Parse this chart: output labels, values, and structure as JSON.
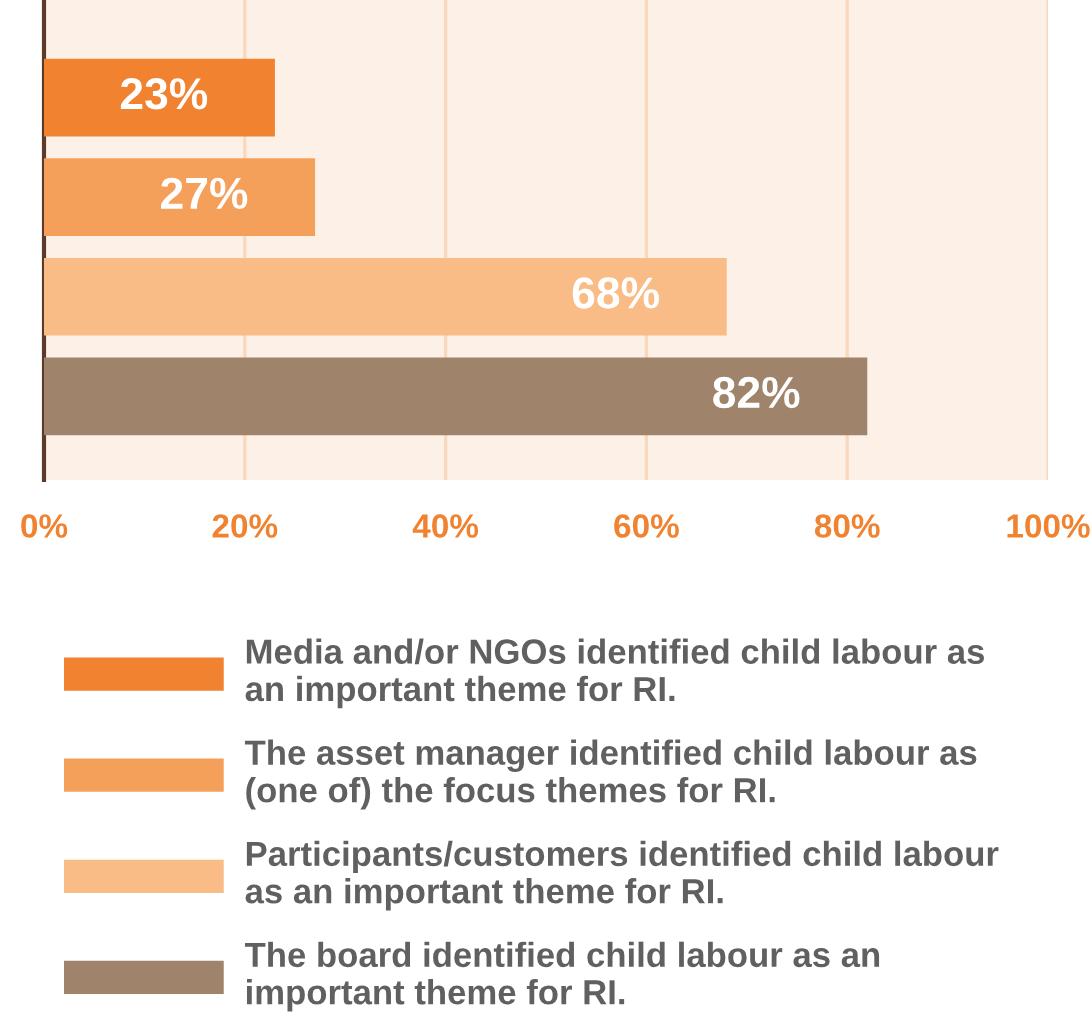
{
  "chart_data": {
    "type": "bar",
    "orientation": "horizontal",
    "categories": [
      null,
      null,
      null,
      null
    ],
    "series": [
      {
        "name": "Media and/or NGOs identified child labour as an important theme for RI.",
        "color": "#f08230",
        "values": [
          23,
          null,
          null,
          null
        ],
        "value_labels": [
          "23%",
          null,
          null,
          null
        ]
      },
      {
        "name": "The asset manager identified child labour as (one of) the focus themes for RI.",
        "color": "#f5a05a",
        "values": [
          null,
          27,
          null,
          null
        ],
        "value_labels": [
          null,
          "27%",
          null,
          null
        ]
      },
      {
        "name": "Participants/customers identified child labour as an important theme for RI.",
        "color": "#f9bc86",
        "values": [
          null,
          null,
          68,
          null
        ],
        "value_labels": [
          null,
          null,
          "68%",
          null
        ]
      },
      {
        "name": "The board identified child labour as an important theme for RI.",
        "color": "#a0836b",
        "values": [
          null,
          null,
          null,
          82
        ],
        "value_labels": [
          null,
          null,
          null,
          "82%"
        ]
      }
    ],
    "xlim": [
      0,
      100
    ],
    "xticks": [
      {
        "value": 0,
        "label": "0%"
      },
      {
        "value": 20,
        "label": "20%"
      },
      {
        "value": 40,
        "label": "40%"
      },
      {
        "value": 60,
        "label": "60%"
      },
      {
        "value": 80,
        "label": "80%"
      },
      {
        "value": 100,
        "label": "100%"
      }
    ],
    "grid": "x",
    "legend": "bottom"
  }
}
